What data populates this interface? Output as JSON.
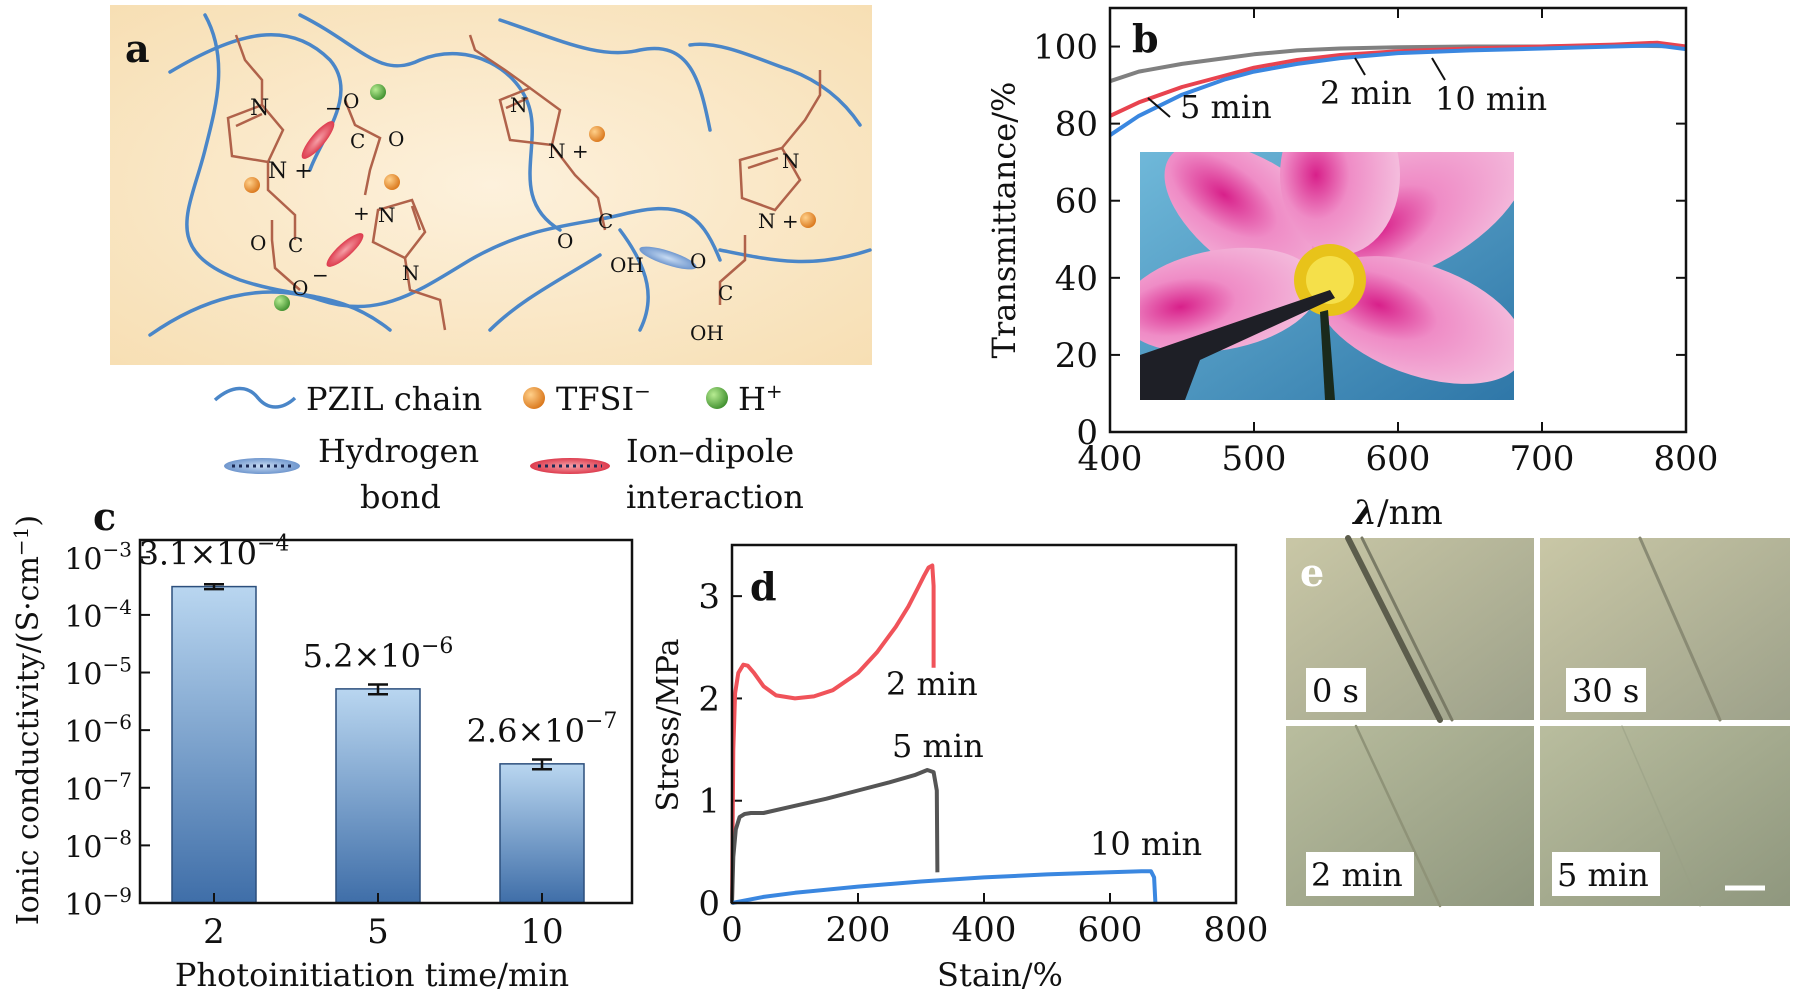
{
  "figure": {
    "panel_a": {
      "letter": "a",
      "legend": {
        "pzil_chain": "PZIL chain",
        "tfsi": "TFSI",
        "tfsi_sup": "−",
        "h": "H",
        "h_sup": "+",
        "hydrogen_bond_1": "Hydrogen",
        "hydrogen_bond_2": "bond",
        "ion_dipole_1": "Ion–dipole",
        "ion_dipole_2": "interaction"
      },
      "chem": {
        "N": "N",
        "N_plus": "N +",
        "plus": "+",
        "minus": "−",
        "O": "O",
        "C": "C",
        "OH": "OH"
      },
      "colors": {
        "background": "#fbe8c4",
        "chain": "#4a86c8",
        "tfsi": "#e8892a",
        "h": "#5aa845",
        "bond": "#b0624a"
      }
    },
    "panel_e": {
      "letter": "e",
      "labels": [
        "0 s",
        "30 s",
        "2 min",
        "5 min"
      ]
    }
  },
  "chart_data": [
    {
      "panel": "b",
      "type": "line",
      "xlabel_symbol": "λ",
      "xlabel": "/nm",
      "ylabel": "Transmittance/%",
      "xlim": [
        400,
        800
      ],
      "ylim": [
        0,
        110
      ],
      "xticks": [
        400,
        500,
        600,
        700,
        800
      ],
      "yticks": [
        0,
        20,
        40,
        60,
        80,
        100
      ],
      "annotations": [
        "2 min",
        "5 min",
        "10 min"
      ],
      "series": [
        {
          "name": "2 min",
          "color": "#808080",
          "x": [
            400,
            420,
            450,
            480,
            500,
            530,
            560,
            600,
            650,
            700,
            750,
            800
          ],
          "y": [
            91,
            93.5,
            95.5,
            97,
            98,
            99,
            99.5,
            99.8,
            100,
            100,
            100.3,
            100
          ]
        },
        {
          "name": "5 min",
          "color": "#e8434f",
          "x": [
            400,
            420,
            450,
            480,
            500,
            530,
            560,
            600,
            650,
            700,
            750,
            780,
            800
          ],
          "y": [
            82,
            85.5,
            89.5,
            92.5,
            94.5,
            96.5,
            97.8,
            98.8,
            99.5,
            100,
            100.5,
            101,
            100
          ]
        },
        {
          "name": "10 min",
          "color": "#3a87e0",
          "x": [
            400,
            420,
            450,
            480,
            500,
            530,
            560,
            600,
            650,
            700,
            750,
            780,
            800
          ],
          "y": [
            77,
            82,
            87.5,
            91.5,
            93.5,
            95.5,
            97,
            98.3,
            99,
            99.5,
            100,
            100.3,
            99.3
          ]
        }
      ]
    },
    {
      "panel": "c",
      "type": "bar",
      "scale": "log",
      "categories": [
        "2",
        "5",
        "10"
      ],
      "values": [
        0.00031,
        5.2e-06,
        2.6e-07
      ],
      "error": [
        3e-05,
        1e-06,
        5e-08
      ],
      "value_labels": [
        {
          "mantissa": "3.1×10",
          "exp": "−4"
        },
        {
          "mantissa": "5.2×10",
          "exp": "−6"
        },
        {
          "mantissa": "2.6×10",
          "exp": "−7"
        }
      ],
      "xlabel": "Photoinitiation time/min",
      "ylabel": "Ionic conductivity/(S·cm",
      "ylabel_sup": "−1",
      "ylabel_end": ")",
      "ytick_exponents": [
        "−3",
        "−4",
        "−5",
        "−6",
        "−7",
        "−8",
        "−9"
      ],
      "ytick_base": "10",
      "ylim_log": [
        -9,
        -2.7
      ],
      "bar_color_top": "#b9d6f0",
      "bar_color_bottom": "#3f6ea8"
    },
    {
      "panel": "d",
      "type": "line",
      "xlabel": "Stain/%",
      "ylabel": "Stress/MPa",
      "xlim": [
        0,
        800
      ],
      "ylim": [
        0,
        3.5
      ],
      "xticks": [
        0,
        200,
        400,
        600,
        800
      ],
      "yticks": [
        0,
        1,
        2,
        3
      ],
      "annotations": [
        "2 min",
        "5 min",
        "10 min"
      ],
      "series": [
        {
          "name": "2 min",
          "color": "#f0535a",
          "x": [
            0,
            2,
            5,
            10,
            18,
            25,
            35,
            50,
            70,
            100,
            130,
            160,
            200,
            230,
            260,
            280,
            295,
            305,
            312,
            318,
            320,
            320
          ],
          "y": [
            0,
            1.5,
            2.05,
            2.25,
            2.33,
            2.32,
            2.25,
            2.12,
            2.03,
            2.0,
            2.02,
            2.08,
            2.25,
            2.45,
            2.7,
            2.9,
            3.08,
            3.2,
            3.28,
            3.3,
            3.1,
            2.3
          ]
        },
        {
          "name": "5 min",
          "color": "#555555",
          "x": [
            0,
            2,
            6,
            12,
            20,
            30,
            50,
            100,
            150,
            200,
            250,
            290,
            310,
            320,
            325,
            326
          ],
          "y": [
            0,
            0.45,
            0.72,
            0.84,
            0.87,
            0.88,
            0.88,
            0.95,
            1.02,
            1.1,
            1.18,
            1.25,
            1.3,
            1.28,
            1.1,
            0.3
          ]
        },
        {
          "name": "10 min",
          "color": "#3a87e0",
          "x": [
            0,
            50,
            100,
            200,
            300,
            400,
            500,
            600,
            650,
            665,
            670,
            672
          ],
          "y": [
            0,
            0.06,
            0.1,
            0.16,
            0.21,
            0.25,
            0.28,
            0.3,
            0.31,
            0.31,
            0.25,
            0.0
          ]
        }
      ]
    }
  ]
}
